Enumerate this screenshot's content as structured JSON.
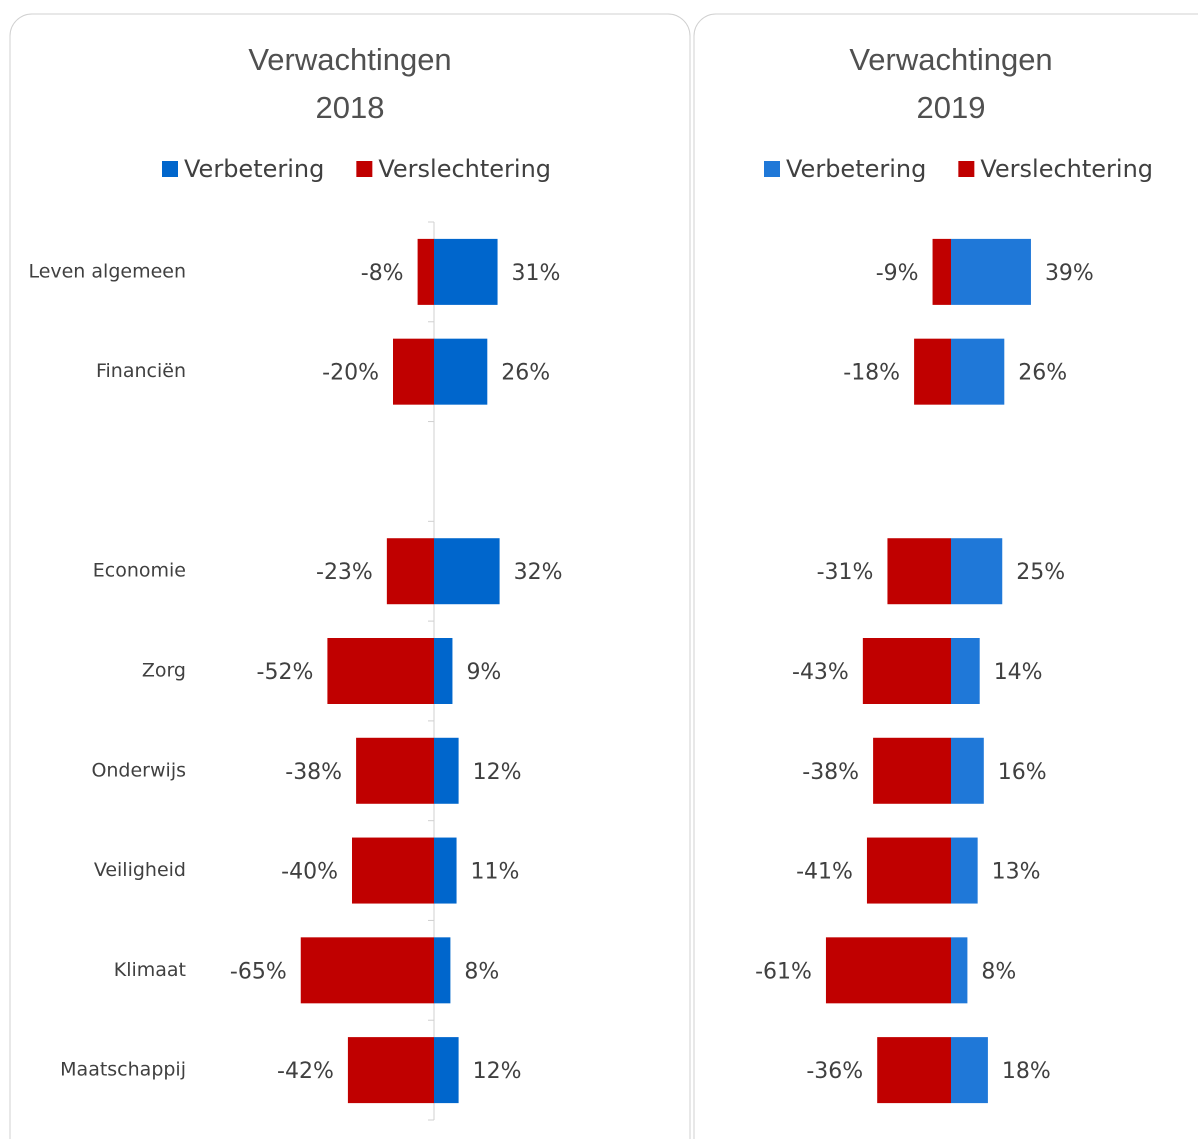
{
  "chart_data": [
    {
      "type": "diverging-bar",
      "title": "Verwachtingen 2018",
      "categories": [
        "Leven algemeen",
        "Financiën",
        null,
        "Economie",
        "Zorg",
        "Onderwijs",
        "Veiligheid",
        "Klimaat",
        "Maatschappij"
      ],
      "xlim": [
        -100,
        100
      ],
      "series": [
        {
          "name": "Verbetering",
          "color": "#0066cc",
          "values": [
            31,
            26,
            null,
            32,
            9,
            12,
            11,
            8,
            12
          ],
          "value_labels": [
            "31%",
            "26%",
            null,
            "32%",
            "9%",
            "12%",
            "11%",
            "8%",
            "12%"
          ]
        },
        {
          "name": "Verslechtering",
          "color": "#c00000",
          "values": [
            -8,
            -20,
            null,
            -23,
            -52,
            -38,
            -40,
            -65,
            -42
          ],
          "value_labels": [
            "-8%",
            "-20%",
            null,
            "-23%",
            "-52%",
            "-38%",
            "-40%",
            "-65%",
            "-42%"
          ]
        }
      ]
    },
    {
      "type": "diverging-bar",
      "title": "Verwachtingen 2019",
      "xlim": [
        -100,
        100
      ],
      "series": [
        {
          "name": "Verbetering",
          "color": "#1f78d8",
          "values": [
            39,
            26,
            null,
            25,
            14,
            16,
            13,
            8,
            18
          ],
          "value_labels": [
            "39%",
            "26%",
            null,
            "25%",
            "14%",
            "16%",
            "13%",
            "8%",
            "18%"
          ]
        },
        {
          "name": "Verslechtering",
          "color": "#c00000",
          "values": [
            -9,
            -18,
            null,
            -31,
            -43,
            -38,
            -41,
            -61,
            -36
          ],
          "value_labels": [
            "-9%",
            "-18%",
            null,
            "-31%",
            "-43%",
            "-38%",
            "-41%",
            "-61%",
            "-36%"
          ]
        }
      ]
    }
  ]
}
